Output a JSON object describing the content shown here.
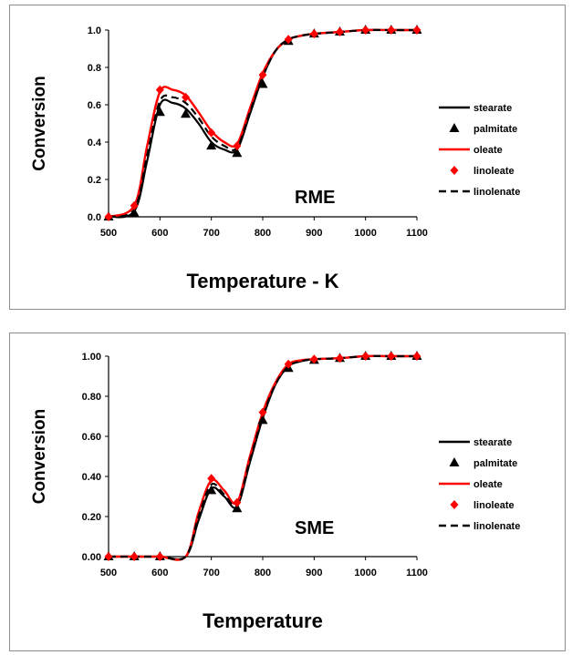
{
  "chart_data": [
    {
      "type": "line",
      "annotation": "RME",
      "title": "",
      "xlabel": "Temperature - K",
      "ylabel": "Conversion",
      "xlim": [
        500,
        1100
      ],
      "ylim": [
        0,
        1.0
      ],
      "xticks": [
        "500",
        "600",
        "700",
        "800",
        "900",
        "1000",
        "1100"
      ],
      "yticks": [
        "0.0",
        "0.2",
        "0.4",
        "0.6",
        "0.8",
        "1.0"
      ],
      "legend_position": "right",
      "grid": false,
      "series": [
        {
          "name": "stearate",
          "style": "solid",
          "color": "#000000",
          "x": [
            500,
            550,
            575,
            600,
            625,
            650,
            675,
            700,
            725,
            750,
            775,
            800,
            825,
            850,
            875,
            900,
            950,
            1000,
            1050,
            1100
          ],
          "y": [
            0.0,
            0.03,
            0.3,
            0.6,
            0.61,
            0.58,
            0.5,
            0.4,
            0.36,
            0.36,
            0.55,
            0.75,
            0.89,
            0.95,
            0.97,
            0.98,
            0.99,
            1.0,
            1.0,
            1.0
          ]
        },
        {
          "name": "palmitate",
          "style": "triangle-marker",
          "color": "#000000",
          "x": [
            500,
            550,
            600,
            650,
            700,
            750,
            800,
            850,
            900,
            950,
            1000,
            1050,
            1100
          ],
          "y": [
            0.0,
            0.02,
            0.56,
            0.55,
            0.38,
            0.34,
            0.71,
            0.94,
            0.98,
            0.99,
            1.0,
            1.0,
            1.0
          ]
        },
        {
          "name": "oleate",
          "style": "solid",
          "color": "#ff0000",
          "x": [
            500,
            550,
            575,
            600,
            625,
            650,
            675,
            700,
            725,
            750,
            775,
            800,
            825,
            850,
            875,
            900,
            950,
            1000,
            1050,
            1100
          ],
          "y": [
            0.0,
            0.06,
            0.38,
            0.67,
            0.68,
            0.65,
            0.56,
            0.46,
            0.4,
            0.39,
            0.58,
            0.77,
            0.89,
            0.95,
            0.97,
            0.98,
            0.99,
            1.0,
            1.0,
            1.0
          ]
        },
        {
          "name": "linoleate",
          "style": "diamond-marker",
          "color": "#ff0000",
          "x": [
            500,
            550,
            600,
            650,
            700,
            750,
            800,
            850,
            900,
            950,
            1000,
            1050,
            1100
          ],
          "y": [
            0.0,
            0.06,
            0.68,
            0.64,
            0.45,
            0.38,
            0.76,
            0.95,
            0.98,
            0.99,
            1.0,
            1.0,
            1.0
          ]
        },
        {
          "name": "linolenate",
          "style": "dashed",
          "color": "#000000",
          "x": [
            500,
            550,
            575,
            600,
            625,
            650,
            675,
            700,
            725,
            750,
            775,
            800,
            825,
            850,
            875,
            900,
            950,
            1000,
            1050,
            1100
          ],
          "y": [
            0.0,
            0.04,
            0.33,
            0.62,
            0.64,
            0.61,
            0.53,
            0.43,
            0.38,
            0.37,
            0.56,
            0.75,
            0.89,
            0.95,
            0.97,
            0.98,
            0.99,
            1.0,
            1.0,
            1.0
          ]
        }
      ]
    },
    {
      "type": "line",
      "annotation": "SME",
      "title": "",
      "xlabel": "Temperature",
      "ylabel": "Conversion",
      "xlim": [
        500,
        1100
      ],
      "ylim": [
        0,
        1.0
      ],
      "xticks": [
        "500",
        "600",
        "700",
        "800",
        "900",
        "1000",
        "1100"
      ],
      "yticks": [
        "0.00",
        "0.20",
        "0.40",
        "0.60",
        "0.80",
        "1.00"
      ],
      "legend_position": "right",
      "grid": false,
      "series": [
        {
          "name": "stearate",
          "style": "solid",
          "color": "#000000",
          "x": [
            500,
            550,
            600,
            650,
            675,
            700,
            725,
            750,
            775,
            800,
            825,
            850,
            875,
            900,
            950,
            1000,
            1050,
            1100
          ],
          "y": [
            0.0,
            0.0,
            0.0,
            0.0,
            0.18,
            0.34,
            0.3,
            0.25,
            0.47,
            0.69,
            0.86,
            0.95,
            0.975,
            0.985,
            0.99,
            1.0,
            1.0,
            1.0
          ]
        },
        {
          "name": "palmitate",
          "style": "triangle-marker",
          "color": "#000000",
          "x": [
            500,
            550,
            600,
            700,
            750,
            800,
            850,
            900,
            950,
            1000,
            1050,
            1100
          ],
          "y": [
            0.0,
            0.0,
            0.0,
            0.33,
            0.24,
            0.68,
            0.94,
            0.98,
            0.99,
            1.0,
            1.0,
            1.0
          ]
        },
        {
          "name": "oleate",
          "style": "solid",
          "color": "#ff0000",
          "x": [
            500,
            550,
            600,
            650,
            675,
            700,
            725,
            750,
            775,
            800,
            825,
            850,
            875,
            900,
            950,
            1000,
            1050,
            1100
          ],
          "y": [
            0.0,
            0.0,
            0.0,
            0.0,
            0.22,
            0.38,
            0.33,
            0.27,
            0.5,
            0.72,
            0.87,
            0.96,
            0.98,
            0.985,
            0.99,
            1.0,
            1.0,
            1.0
          ]
        },
        {
          "name": "linoleate",
          "style": "diamond-marker",
          "color": "#ff0000",
          "x": [
            500,
            550,
            600,
            700,
            750,
            800,
            850,
            900,
            950,
            1000,
            1050,
            1100
          ],
          "y": [
            0.0,
            0.0,
            0.0,
            0.39,
            0.27,
            0.72,
            0.96,
            0.985,
            0.99,
            1.0,
            1.0,
            1.0
          ]
        },
        {
          "name": "linolenate",
          "style": "dashed",
          "color": "#000000",
          "x": [
            500,
            550,
            600,
            650,
            675,
            700,
            725,
            750,
            775,
            800,
            825,
            850,
            875,
            900,
            950,
            1000,
            1050,
            1100
          ],
          "y": [
            0.0,
            0.0,
            0.0,
            0.0,
            0.2,
            0.36,
            0.31,
            0.26,
            0.48,
            0.7,
            0.86,
            0.95,
            0.975,
            0.985,
            0.99,
            1.0,
            1.0,
            1.0
          ]
        }
      ]
    }
  ]
}
